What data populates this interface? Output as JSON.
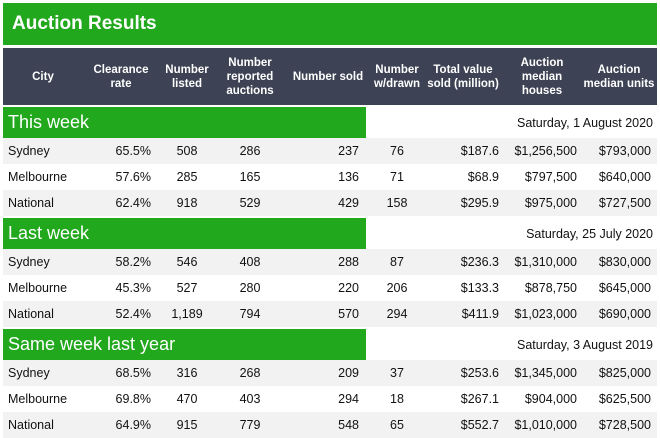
{
  "title": "Auction Results",
  "colors": {
    "brand_green": "#22a81d",
    "header_bg": "#3d4254"
  },
  "header": {
    "city": "City",
    "clearance_rate": "Clearance rate",
    "number_listed": "Number listed",
    "number_reported": "Number reported auctions",
    "number_sold": "Number sold",
    "number_withdrawn": "Number w/drawn",
    "total_value": "Total value sold (million)",
    "median_houses": "Auction median houses",
    "median_units": "Auction median units"
  },
  "sections": [
    {
      "label": "This week",
      "date": "Saturday, 1 August 2020",
      "rows": [
        [
          "Sydney",
          "65.5%",
          "508",
          "286",
          "237",
          "76",
          "$187.6",
          "$1,256,500",
          "$793,000"
        ],
        [
          "Melbourne",
          "57.6%",
          "285",
          "165",
          "136",
          "71",
          "$68.9",
          "$797,500",
          "$640,000"
        ],
        [
          "National",
          "62.4%",
          "918",
          "529",
          "429",
          "158",
          "$295.9",
          "$975,000",
          "$727,500"
        ]
      ]
    },
    {
      "label": "Last week",
      "date": "Saturday, 25 July 2020",
      "rows": [
        [
          "Sydney",
          "58.2%",
          "546",
          "408",
          "288",
          "87",
          "$236.3",
          "$1,310,000",
          "$830,000"
        ],
        [
          "Melbourne",
          "45.3%",
          "527",
          "280",
          "220",
          "206",
          "$133.3",
          "$878,750",
          "$645,000"
        ],
        [
          "National",
          "52.4%",
          "1,189",
          "794",
          "570",
          "294",
          "$411.9",
          "$1,023,000",
          "$690,000"
        ]
      ]
    },
    {
      "label": "Same week last year",
      "date": "Saturday, 3 August 2019",
      "rows": [
        [
          "Sydney",
          "68.5%",
          "316",
          "268",
          "209",
          "37",
          "$253.6",
          "$1,345,000",
          "$825,000"
        ],
        [
          "Melbourne",
          "69.8%",
          "470",
          "403",
          "294",
          "18",
          "$267.1",
          "$904,000",
          "$625,500"
        ],
        [
          "National",
          "64.9%",
          "915",
          "779",
          "548",
          "65",
          "$552.7",
          "$1,010,000",
          "$728,500"
        ]
      ]
    }
  ]
}
